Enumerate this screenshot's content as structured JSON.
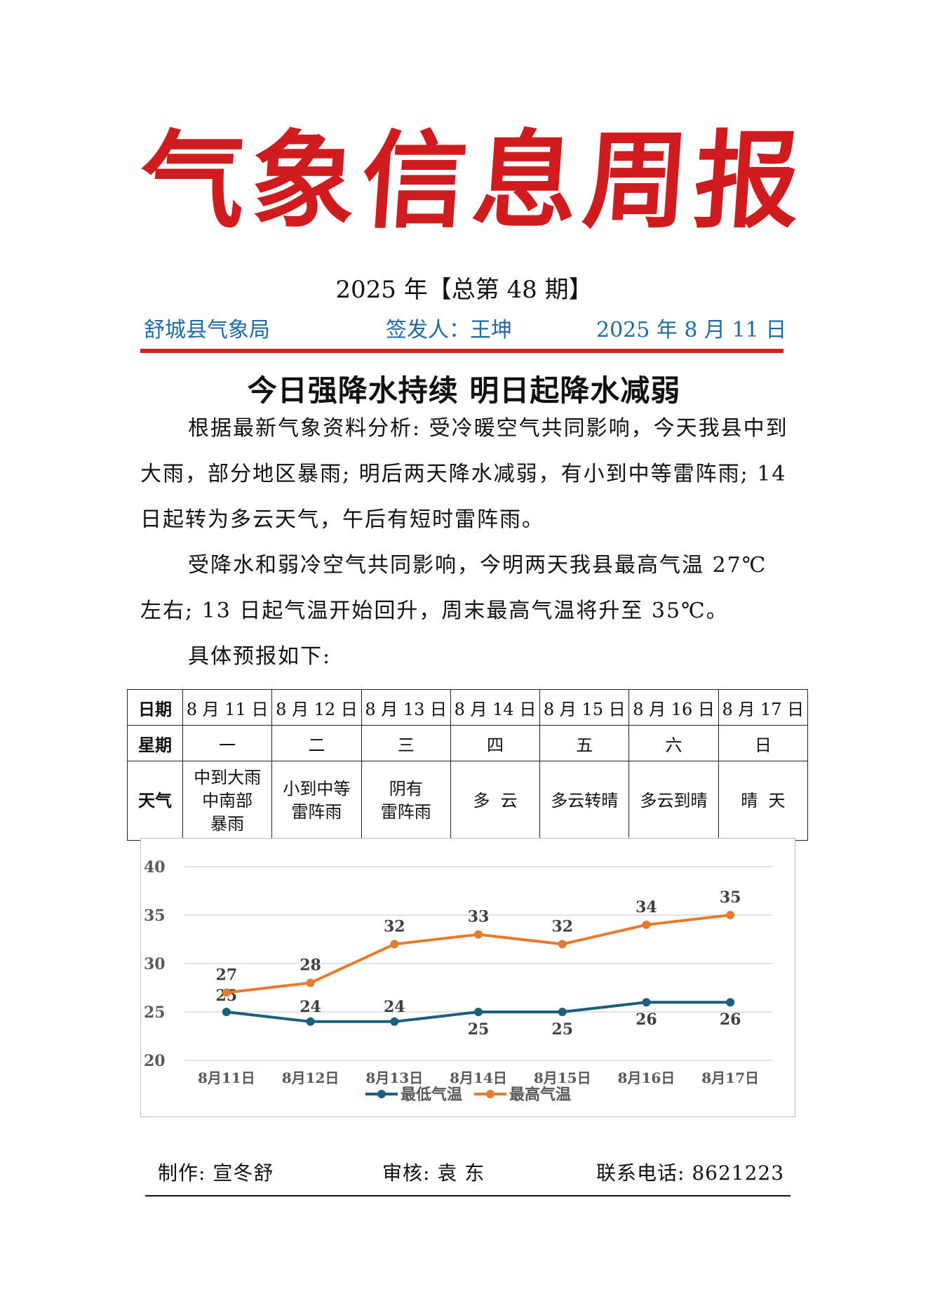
{
  "masthead": {
    "chars": [
      "气",
      "象",
      "信",
      "息",
      "周",
      "报"
    ]
  },
  "issue_line": "2025 年【总第 48 期】",
  "meta": {
    "bureau": "舒城县气象局",
    "signer": "签发人：王坤",
    "date": "2025 年 8 月 11 日"
  },
  "headline": "今日强降水持续   明日起降水减弱",
  "paragraphs": [
    "根据最新气象资料分析: 受冷暖空气共同影响，今天我县中到大雨，部分地区暴雨; 明后两天降水减弱，有小到中等雷阵雨; 14 日起转为多云天气，午后有短时雷阵雨。",
    "受降水和弱冷空气共同影响，今明两天我县最高气温 27℃左右; 13 日起气温开始回升，周末最高气温将升至 35℃。",
    "具体预报如下:"
  ],
  "table": {
    "row_headers": [
      "日期",
      "星期",
      "天气"
    ],
    "dates": [
      "8 月 11 日",
      "8 月 12 日",
      "8 月 13 日",
      "8 月 14 日",
      "8 月 15 日",
      "8 月 16 日",
      "8 月 17 日"
    ],
    "weekdays": [
      "一",
      "二",
      "三",
      "四",
      "五",
      "六",
      "日"
    ],
    "weather": [
      [
        "中到大雨",
        "中南部",
        "暴雨"
      ],
      [
        "小到中等",
        "雷阵雨"
      ],
      [
        "阴有",
        "雷阵雨"
      ],
      [
        "多  云"
      ],
      [
        "多云转晴"
      ],
      [
        "多云到晴"
      ],
      [
        "晴  天"
      ]
    ]
  },
  "chart_data": {
    "type": "line",
    "categories": [
      "8月11日",
      "8月12日",
      "8月13日",
      "8月14日",
      "8月15日",
      "8月16日",
      "8月17日"
    ],
    "series": [
      {
        "name": "最低气温",
        "values": [
          25,
          24,
          24,
          25,
          25,
          26,
          26
        ],
        "color": "#1c5f7a"
      },
      {
        "name": "最高气温",
        "values": [
          27,
          28,
          32,
          33,
          32,
          34,
          35
        ],
        "color": "#e67a2e"
      }
    ],
    "ylim": [
      20,
      40
    ],
    "yticks": [
      20,
      25,
      30,
      35,
      40
    ],
    "grid": true,
    "legend": "bottom",
    "data_labels": true
  },
  "footer": {
    "maker": "制作: 宣冬舒",
    "reviewer": "审核: 袁 东",
    "phone": "联系电话: 8621223"
  }
}
